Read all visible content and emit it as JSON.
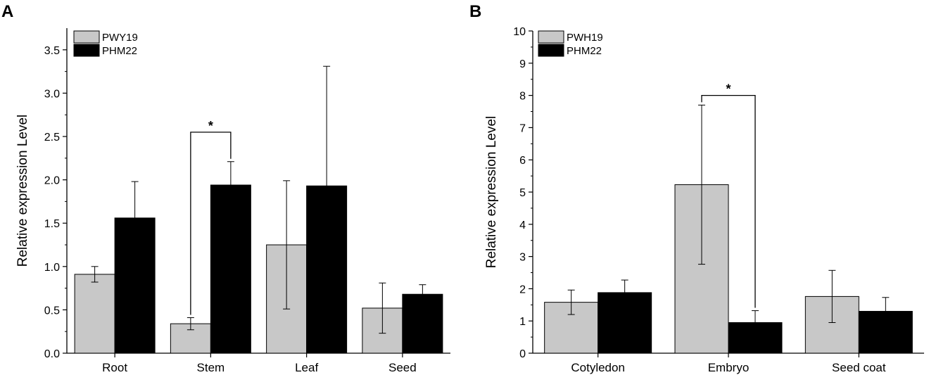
{
  "chart_data": [
    {
      "type": "bar",
      "panel_label": "A",
      "title": "",
      "xlabel": "",
      "ylabel": "Relative expression Level",
      "ylim": [
        0,
        3.75
      ],
      "yticks": [
        0.0,
        0.5,
        1.0,
        1.5,
        2.0,
        2.5,
        3.0,
        3.5
      ],
      "ytick_labels": [
        "0.0",
        "0.5",
        "1.0",
        "1.5",
        "2.0",
        "2.5",
        "3.0",
        "3.5"
      ],
      "categories": [
        "Root",
        "Stem",
        "Leaf",
        "Seed"
      ],
      "series": [
        {
          "name": "PWY19",
          "color": "#c8c8c8",
          "values": [
            0.91,
            0.34,
            1.25,
            0.52
          ],
          "errors": [
            0.09,
            0.07,
            0.74,
            0.29
          ]
        },
        {
          "name": "PHM22",
          "color": "#000000",
          "values": [
            1.56,
            1.94,
            1.93,
            0.68
          ],
          "errors": [
            0.42,
            0.27,
            1.38,
            0.11
          ]
        }
      ],
      "significance": [
        {
          "category": "Stem",
          "label": "*",
          "bracket_y": 2.55
        }
      ],
      "legend_position": "top-left",
      "grid": false
    },
    {
      "type": "bar",
      "panel_label": "B",
      "title": "",
      "xlabel": "",
      "ylabel": "Relative expression Level",
      "ylim": [
        0,
        10
      ],
      "yticks": [
        0,
        1,
        2,
        3,
        4,
        5,
        6,
        7,
        8,
        9,
        10
      ],
      "ytick_labels": [
        "0",
        "1",
        "2",
        "3",
        "4",
        "5",
        "6",
        "7",
        "8",
        "9",
        "10"
      ],
      "categories": [
        "Cotyledon",
        "Embryo",
        "Seed coat"
      ],
      "series": [
        {
          "name": "PWH19",
          "color": "#c8c8c8",
          "values": [
            1.58,
            5.23,
            1.76
          ],
          "errors": [
            0.38,
            2.47,
            0.81
          ]
        },
        {
          "name": "PHM22",
          "color": "#000000",
          "values": [
            1.88,
            0.95,
            1.3
          ],
          "errors": [
            0.39,
            0.37,
            0.43
          ]
        }
      ],
      "significance": [
        {
          "category": "Embryo",
          "label": "*",
          "bracket_y": 8.0
        }
      ],
      "legend_position": "top-left",
      "grid": false
    }
  ]
}
